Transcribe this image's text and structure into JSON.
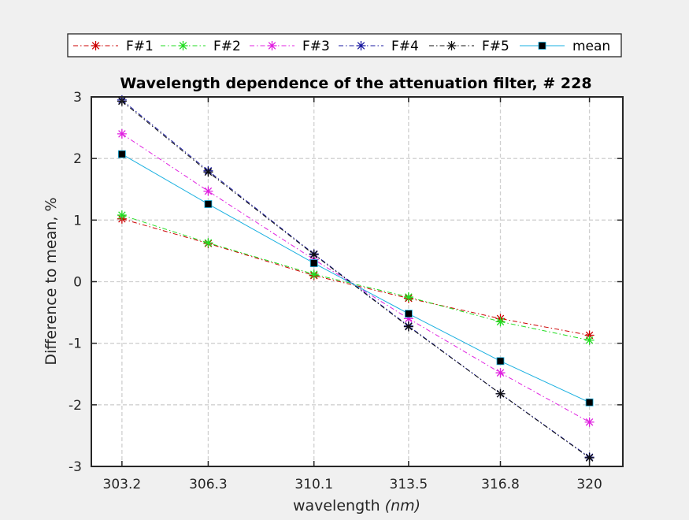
{
  "chart_data": {
    "type": "line",
    "title": "Wavelength dependence of the attenuation filter,  # 228",
    "xlabel": "wavelength",
    "xlabel_unit": "(nm)",
    "ylabel": "Difference to mean, %",
    "x": [
      303.2,
      306.3,
      310.1,
      313.5,
      316.8,
      320
    ],
    "xticks": [
      "303.2",
      "306.3",
      "310.1",
      "313.5",
      "316.8",
      "320"
    ],
    "xlim": [
      302.1,
      321.2
    ],
    "ylim": [
      -3,
      3
    ],
    "yticks": [
      "3",
      "2",
      "1",
      "0",
      "-1",
      "-2",
      "-3"
    ],
    "grid": true,
    "legend_position": "top, horizontal, outside the plot",
    "series": [
      {
        "name": "F#1",
        "color": "#cc0000",
        "marker": "asterisk",
        "line": "dash-dot",
        "values": [
          1.02,
          0.62,
          0.1,
          -0.27,
          -0.6,
          -0.87
        ]
      },
      {
        "name": "F#2",
        "color": "#22dd22",
        "marker": "asterisk",
        "line": "dash-dot",
        "values": [
          1.08,
          0.63,
          0.12,
          -0.25,
          -0.65,
          -0.95
        ]
      },
      {
        "name": "F#3",
        "color": "#e020e0",
        "marker": "asterisk",
        "line": "dash-dot",
        "values": [
          2.4,
          1.47,
          0.36,
          -0.6,
          -1.48,
          -2.28
        ]
      },
      {
        "name": "F#4",
        "color": "#1a1aa0",
        "marker": "asterisk",
        "line": "dash-dot",
        "values": [
          2.95,
          1.8,
          0.45,
          -0.72,
          -1.82,
          -2.85
        ]
      },
      {
        "name": "F#5",
        "color": "#111111",
        "marker": "asterisk",
        "line": "dash-dot",
        "values": [
          2.93,
          1.78,
          0.44,
          -0.73,
          -1.82,
          -2.86
        ]
      },
      {
        "name": "mean",
        "color": "#1ab0e0",
        "marker_color": "#000000",
        "marker": "square",
        "line": "solid",
        "values": [
          2.07,
          1.26,
          0.3,
          -0.52,
          -1.29,
          -1.96
        ]
      }
    ]
  }
}
